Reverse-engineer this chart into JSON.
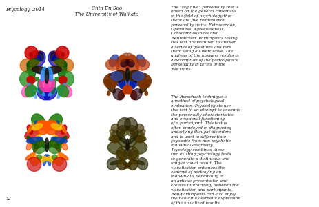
{
  "header_left": "Psycology, 2014",
  "header_right_line1": "Chin-En Soo",
  "header_right_line2": "The University of Waikato",
  "page_number": "32",
  "paragraph1": "The \"Big Five\" personality test is\nbased on the general consensus\nin the field of psychology that\nthere are five fundamental\npersonality traits: Extraversion,\nOpenness, Agreeableness,\nConscientiousness and\nNeuroticism. Participants taking\nthis test are required to answer\na series of questions and rate\nthem using a Likert scale. The\nanalysis of the answers results in\na description of the participant's\npersonality in terms of the\nfive traits.",
  "paragraph2": "The Rorschach technique is\na method of psychological\nevaluation. Psychologists use\nthis test in an attempt to examine\nthe personality characteristics\nand emotional functioning\nof a participant. This test is\noften employed in diagnosing\nunderlying thought disorders\nand is used to differentiate\npsychotic from non-psychotic\nindividual discreetly.",
  "paragraph3": "Psycology combines these\ntwo existing psychology tests\nto generate a distinctive and\nunique visual result. The\nvisualization enhances the\nconcept of portraying an\nindividual's personality in\nan artistic presentation and\ncreates interactivity between the\nvisualization and participants.\nNon-participants can also enjoy\nthe beautiful aesthetic expression\nof the visualized results.",
  "bg_color": "#ffffff",
  "text_color": "#1a1a1a",
  "header_color": "#1a1a1a",
  "text_fontsize": 4.2,
  "header_fontsize": 5.0
}
